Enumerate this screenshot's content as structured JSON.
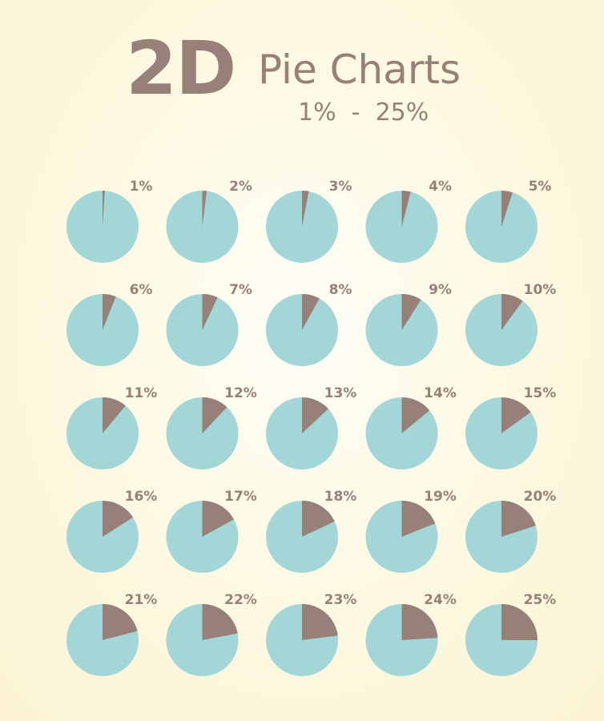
{
  "header": {
    "title_big": "2D",
    "title_main": "Pie Charts",
    "subtitle": "1%  -  25%"
  },
  "colors": {
    "pie_fill": "#a2d6d7",
    "slice_fill": "#978078",
    "text": "#978078",
    "background": "#fdf8e0"
  },
  "chart_data": {
    "type": "pie",
    "layout": "grid 5 columns x 5 rows",
    "pies": [
      {
        "label": "1%",
        "value": 1
      },
      {
        "label": "2%",
        "value": 2
      },
      {
        "label": "3%",
        "value": 3
      },
      {
        "label": "4%",
        "value": 4
      },
      {
        "label": "5%",
        "value": 5
      },
      {
        "label": "6%",
        "value": 6
      },
      {
        "label": "7%",
        "value": 7
      },
      {
        "label": "8%",
        "value": 8
      },
      {
        "label": "9%",
        "value": 9
      },
      {
        "label": "10%",
        "value": 10
      },
      {
        "label": "11%",
        "value": 11
      },
      {
        "label": "12%",
        "value": 12
      },
      {
        "label": "13%",
        "value": 13
      },
      {
        "label": "14%",
        "value": 14
      },
      {
        "label": "15%",
        "value": 15
      },
      {
        "label": "16%",
        "value": 16
      },
      {
        "label": "17%",
        "value": 17
      },
      {
        "label": "18%",
        "value": 18
      },
      {
        "label": "19%",
        "value": 19
      },
      {
        "label": "20%",
        "value": 20
      },
      {
        "label": "21%",
        "value": 21
      },
      {
        "label": "22%",
        "value": 22
      },
      {
        "label": "23%",
        "value": 23
      },
      {
        "label": "24%",
        "value": 24
      },
      {
        "label": "25%",
        "value": 25
      }
    ]
  }
}
